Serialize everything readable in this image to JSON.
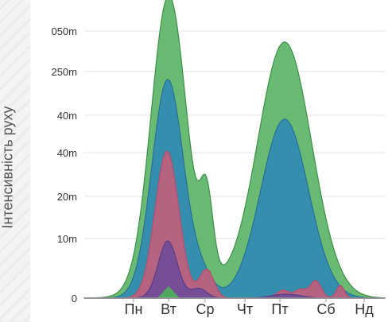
{
  "chart_data": {
    "type": "area",
    "ylabel": "Інтенсивність руху",
    "xlabel": "",
    "categories": [
      "Пн",
      "Вт",
      "Ср",
      "Чт",
      "Пт",
      "Сб",
      "Нд"
    ],
    "y_tick_labels": [
      "0",
      "10m",
      "20m",
      "40m",
      "40m",
      "250m",
      "050m"
    ],
    "grid": true,
    "series_count": 4,
    "colors": {
      "green": "#4fae5b",
      "blue": "#2e86b8",
      "red": "#cc5c7a",
      "purple": "#6a4a9a",
      "outline": "#3d8f48"
    },
    "notes": "Overlapping peaks on Вт (Tuesday) and Пт (Friday); series are unlabeled in the original."
  }
}
